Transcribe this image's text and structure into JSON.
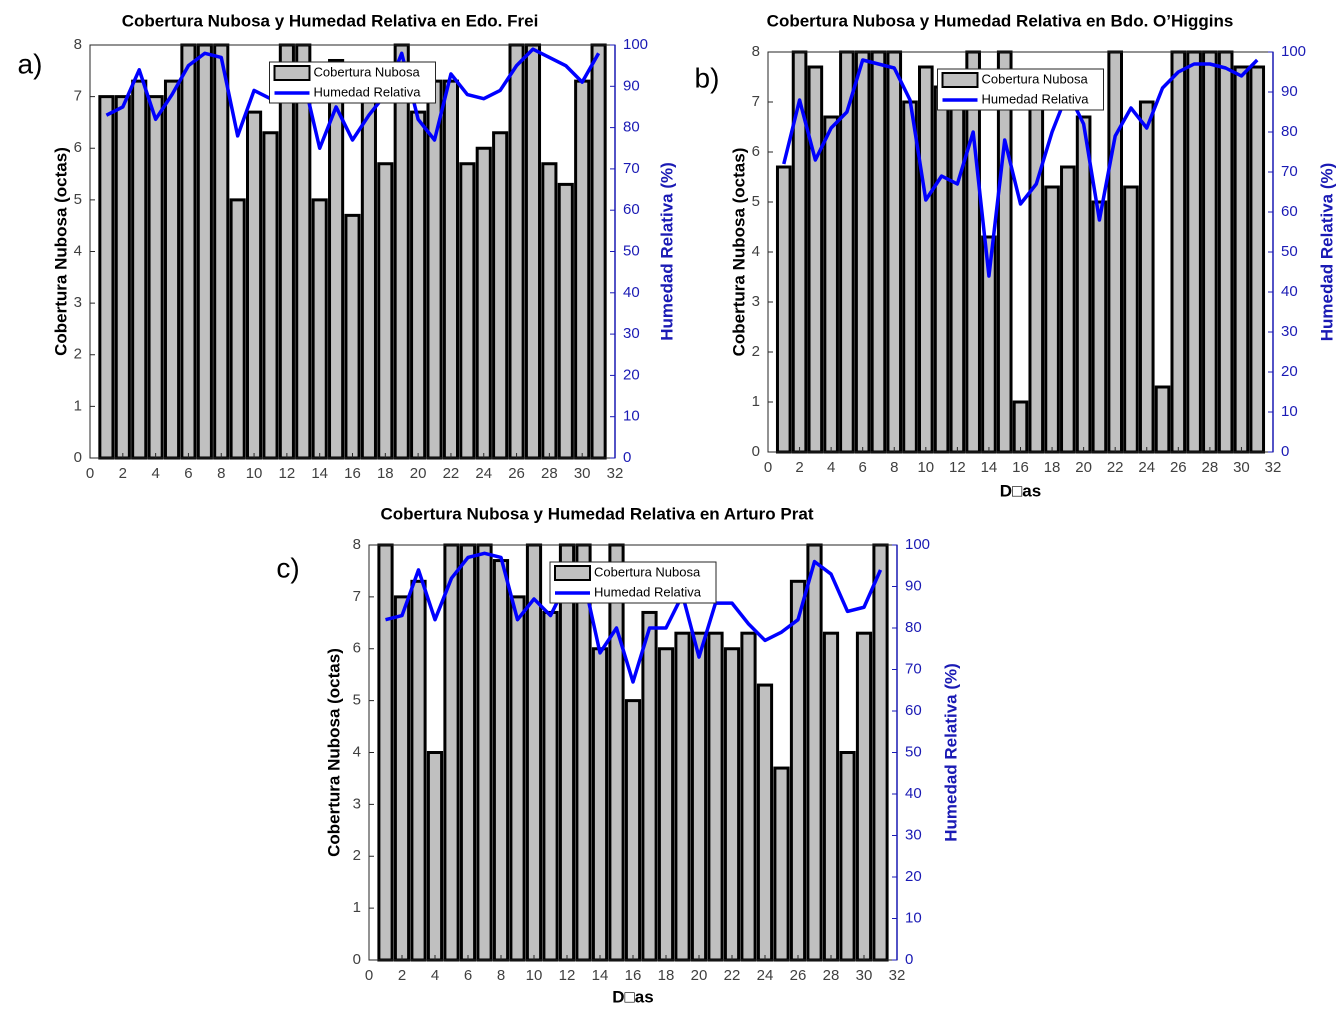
{
  "chart_data": [
    {
      "type": "bar",
      "label": "a)",
      "title": "Cobertura Nubosa y Humedad Relativa en Edo. Frei",
      "ylabel": "Cobertura Nubosa (octas)",
      "y2label": "Humedad Relativa (%)",
      "x": [
        1,
        2,
        3,
        4,
        5,
        6,
        7,
        8,
        9,
        10,
        11,
        12,
        13,
        14,
        15,
        16,
        17,
        18,
        19,
        20,
        21,
        22,
        23,
        24,
        25,
        26,
        27,
        28,
        29,
        30,
        31
      ],
      "xlim": [
        0,
        32
      ],
      "xticks": [
        0,
        2,
        4,
        6,
        8,
        10,
        12,
        14,
        16,
        18,
        20,
        22,
        24,
        26,
        28,
        30,
        32
      ],
      "ylim": [
        0,
        8
      ],
      "yticks": [
        0,
        1,
        2,
        3,
        4,
        5,
        6,
        7,
        8
      ],
      "y2lim": [
        0,
        100
      ],
      "y2ticks": [
        0,
        10,
        20,
        30,
        40,
        50,
        60,
        70,
        80,
        90,
        100
      ],
      "legend": "upper center",
      "series": [
        {
          "name": "Cobertura Nubosa",
          "color": "#c0c0c0",
          "values": [
            7,
            7,
            7.3,
            7,
            7.3,
            8,
            8,
            8,
            5,
            6.7,
            6.3,
            8,
            8,
            5,
            7.7,
            4.7,
            7,
            5.7,
            8,
            6.7,
            7.3,
            7.3,
            5.7,
            6,
            6.3,
            8,
            8,
            5.7,
            5.3,
            7.3,
            8
          ]
        },
        {
          "name": "Humedad Relativa",
          "color": "#0000ff",
          "axis": "y2",
          "type": "line",
          "values": [
            83,
            85,
            94,
            82,
            88,
            95,
            98,
            97,
            78,
            89,
            87,
            92,
            92,
            75,
            85,
            77,
            83,
            88,
            98,
            82,
            77,
            93,
            88,
            87,
            89,
            95,
            99,
            97,
            95,
            91,
            98
          ]
        }
      ]
    },
    {
      "type": "bar",
      "label": "b)",
      "title": "Cobertura Nubosa y Humedad Relativa en Bdo. O’Higgins",
      "xlabel": "D□as",
      "ylabel": "Cobertura Nubosa (octas)",
      "y2label": "Humedad Relativa (%)",
      "x": [
        1,
        2,
        3,
        4,
        5,
        6,
        7,
        8,
        9,
        10,
        11,
        12,
        13,
        14,
        15,
        16,
        17,
        18,
        19,
        20,
        21,
        22,
        23,
        24,
        25,
        26,
        27,
        28,
        29,
        30,
        31
      ],
      "xlim": [
        0,
        32
      ],
      "xticks": [
        0,
        2,
        4,
        6,
        8,
        10,
        12,
        14,
        16,
        18,
        20,
        22,
        24,
        26,
        28,
        30,
        32
      ],
      "ylim": [
        0,
        8
      ],
      "yticks": [
        0,
        1,
        2,
        3,
        4,
        5,
        6,
        7,
        8
      ],
      "y2lim": [
        0,
        100
      ],
      "y2ticks": [
        0,
        10,
        20,
        30,
        40,
        50,
        60,
        70,
        80,
        90,
        100
      ],
      "legend": "upper center",
      "series": [
        {
          "name": "Cobertura Nubosa",
          "color": "#c0c0c0",
          "values": [
            5.7,
            8,
            7.7,
            6.7,
            8,
            8,
            8,
            8,
            7,
            7.7,
            7.3,
            7.3,
            8,
            4.3,
            8,
            1,
            7,
            5.3,
            5.7,
            6.7,
            5,
            8,
            5.3,
            7,
            1.3,
            8,
            8,
            8,
            8,
            7.7,
            7.7
          ]
        },
        {
          "name": "Humedad Relativa",
          "color": "#0000ff",
          "axis": "y2",
          "type": "line",
          "values": [
            72,
            88,
            73,
            81,
            85,
            98,
            97,
            96,
            88,
            63,
            69,
            67,
            80,
            44,
            78,
            62,
            67,
            80,
            90,
            82,
            58,
            79,
            86,
            81,
            91,
            95,
            97,
            97,
            96,
            94,
            98
          ]
        }
      ]
    },
    {
      "type": "bar",
      "label": "c)",
      "title": "Cobertura Nubosa y Humedad Relativa en Arturo Prat",
      "xlabel": "D□as",
      "ylabel": "Cobertura Nubosa (octas)",
      "y2label": "Humedad Relativa (%)",
      "x": [
        1,
        2,
        3,
        4,
        5,
        6,
        7,
        8,
        9,
        10,
        11,
        12,
        13,
        14,
        15,
        16,
        17,
        18,
        19,
        20,
        21,
        22,
        23,
        24,
        25,
        26,
        27,
        28,
        29,
        30,
        31
      ],
      "xlim": [
        0,
        32
      ],
      "xticks": [
        0,
        2,
        4,
        6,
        8,
        10,
        12,
        14,
        16,
        18,
        20,
        22,
        24,
        26,
        28,
        30,
        32
      ],
      "ylim": [
        0,
        8
      ],
      "yticks": [
        0,
        1,
        2,
        3,
        4,
        5,
        6,
        7,
        8
      ],
      "y2lim": [
        0,
        100
      ],
      "y2ticks": [
        0,
        10,
        20,
        30,
        40,
        50,
        60,
        70,
        80,
        90,
        100
      ],
      "legend": "upper center",
      "series": [
        {
          "name": "Cobertura Nubosa",
          "color": "#c0c0c0",
          "values": [
            8,
            7,
            7.3,
            4,
            8,
            8,
            8,
            7.7,
            7,
            8,
            6.7,
            8,
            8,
            6,
            8,
            5,
            6.7,
            6,
            6.3,
            6.3,
            6.3,
            6,
            6.3,
            5.3,
            3.7,
            7.3,
            8,
            6.3,
            4,
            6.3,
            8
          ]
        },
        {
          "name": "Humedad Relativa",
          "color": "#0000ff",
          "axis": "y2",
          "type": "line",
          "values": [
            82,
            83,
            94,
            82,
            92,
            97,
            98,
            97,
            82,
            87,
            83,
            91,
            92,
            74,
            80,
            67,
            80,
            80,
            88,
            73,
            86,
            86,
            81,
            77,
            79,
            82,
            96,
            93,
            84,
            85,
            94
          ]
        }
      ]
    }
  ]
}
